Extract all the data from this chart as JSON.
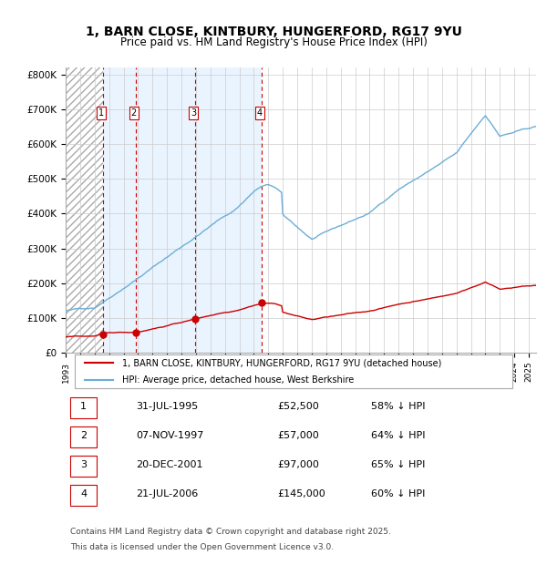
{
  "title_line1": "1, BARN CLOSE, KINTBURY, HUNGERFORD, RG17 9YU",
  "title_line2": "Price paid vs. HM Land Registry's House Price Index (HPI)",
  "legend_line1": "1, BARN CLOSE, KINTBURY, HUNGERFORD, RG17 9YU (detached house)",
  "legend_line2": "HPI: Average price, detached house, West Berkshire",
  "footer_line1": "Contains HM Land Registry data © Crown copyright and database right 2025.",
  "footer_line2": "This data is licensed under the Open Government Licence v3.0.",
  "sales": [
    {
      "num": 1,
      "date": "31-JUL-1995",
      "price": 52500,
      "pct": "58%",
      "x_year": 1995.58
    },
    {
      "num": 2,
      "date": "07-NOV-1997",
      "price": 57000,
      "pct": "64%",
      "x_year": 1997.85
    },
    {
      "num": 3,
      "date": "20-DEC-2001",
      "price": 97000,
      "pct": "65%",
      "x_year": 2001.97
    },
    {
      "num": 4,
      "date": "21-JUL-2006",
      "price": 145000,
      "pct": "60%",
      "x_year": 2006.56
    }
  ],
  "hpi_color": "#6baed6",
  "price_color": "#cc0000",
  "grid_color": "#cccccc",
  "bg_color": "#ffffff",
  "hatch_color": "#dddddd",
  "shade_color": "#ddeeff",
  "dashed_line_color": "#cc0000",
  "ylim": [
    0,
    820000
  ],
  "yticks": [
    0,
    100000,
    200000,
    300000,
    400000,
    500000,
    600000,
    700000,
    800000
  ],
  "xlim_start": 1993.0,
  "xlim_end": 2025.5
}
